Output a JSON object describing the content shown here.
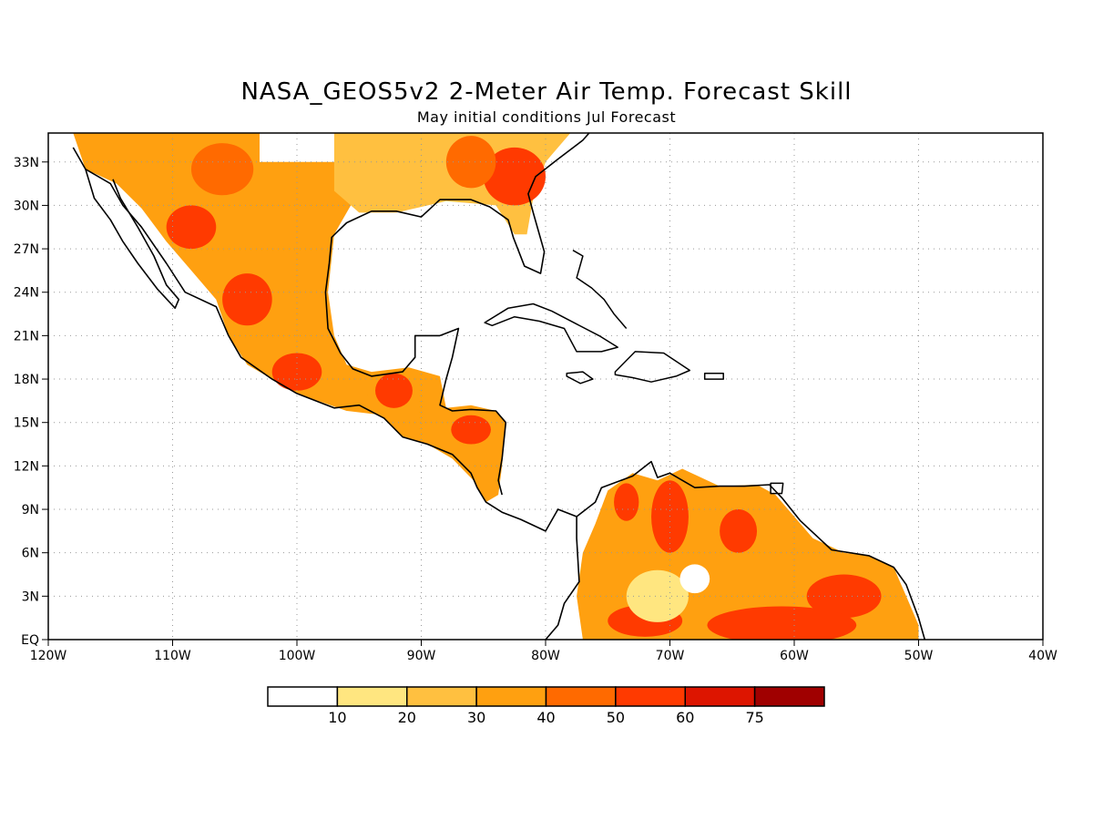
{
  "title": "NASA_GEOS5v2 2-Meter Air Temp. Forecast Skill",
  "subtitle": "May initial conditions  Jul Forecast",
  "map": {
    "lon_range": [
      -120,
      -40
    ],
    "lat_range": [
      0,
      35
    ],
    "lon_ticks": [
      {
        "value": -120,
        "label": "120W"
      },
      {
        "value": -110,
        "label": "110W"
      },
      {
        "value": -100,
        "label": "100W"
      },
      {
        "value": -90,
        "label": "90W"
      },
      {
        "value": -80,
        "label": "80W"
      },
      {
        "value": -70,
        "label": "70W"
      },
      {
        "value": -60,
        "label": "60W"
      },
      {
        "value": -50,
        "label": "50W"
      },
      {
        "value": -40,
        "label": "40W"
      }
    ],
    "lat_ticks": [
      {
        "value": 0,
        "label": "EQ"
      },
      {
        "value": 3,
        "label": "3N"
      },
      {
        "value": 6,
        "label": "6N"
      },
      {
        "value": 9,
        "label": "9N"
      },
      {
        "value": 12,
        "label": "12N"
      },
      {
        "value": 15,
        "label": "15N"
      },
      {
        "value": 18,
        "label": "18N"
      },
      {
        "value": 21,
        "label": "21N"
      },
      {
        "value": 24,
        "label": "24N"
      },
      {
        "value": 27,
        "label": "27N"
      },
      {
        "value": 30,
        "label": "30N"
      },
      {
        "value": 33,
        "label": "33N"
      }
    ],
    "grid": "dotted"
  },
  "colorbar": {
    "colors": [
      "#ffffff",
      "#ffe680",
      "#ffc040",
      "#ffa010",
      "#ff6a00",
      "#ff3a00",
      "#dd1500",
      "#a00000"
    ],
    "labels": [
      "10",
      "20",
      "30",
      "40",
      "50",
      "60",
      "75"
    ]
  },
  "skill_regions": [
    {
      "name": "mexico-us-southwest",
      "level": 3,
      "lonlat": [
        [
          -118,
          35
        ],
        [
          -103,
          35
        ],
        [
          -103,
          33
        ],
        [
          -97,
          33
        ],
        [
          -95,
          31
        ],
        [
          -97,
          28
        ],
        [
          -97.5,
          24
        ],
        [
          -97,
          21
        ],
        [
          -96,
          19
        ],
        [
          -94,
          18.5
        ],
        [
          -92,
          17.5
        ],
        [
          -91,
          16
        ],
        [
          -93,
          15.5
        ],
        [
          -96,
          15.8
        ],
        [
          -100,
          17
        ],
        [
          -104,
          19
        ],
        [
          -105.5,
          21
        ],
        [
          -106.5,
          23.5
        ],
        [
          -108.5,
          25.5
        ],
        [
          -110.5,
          27.5
        ],
        [
          -112.5,
          29.8
        ],
        [
          -114.5,
          31.5
        ],
        [
          -117,
          32.5
        ]
      ]
    },
    {
      "name": "us-southeast",
      "level": 2,
      "lonlat": [
        [
          -97,
          35
        ],
        [
          -78,
          35
        ],
        [
          -80,
          33
        ],
        [
          -81,
          30.5
        ],
        [
          -81.5,
          28
        ],
        [
          -82.5,
          28
        ],
        [
          -84,
          30
        ],
        [
          -88,
          30.3
        ],
        [
          -92,
          29.5
        ],
        [
          -95,
          29.5
        ],
        [
          -97,
          31
        ]
      ]
    },
    {
      "name": "central-america",
      "level": 3,
      "lonlat": [
        [
          -94,
          18.5
        ],
        [
          -91,
          18.8
        ],
        [
          -88.5,
          18.2
        ],
        [
          -88,
          16
        ],
        [
          -86,
          16.2
        ],
        [
          -84,
          15.8
        ],
        [
          -83.2,
          15
        ],
        [
          -83.5,
          12
        ],
        [
          -83.8,
          10
        ],
        [
          -84.8,
          9.5
        ],
        [
          -85.8,
          11
        ],
        [
          -87.5,
          12.5
        ],
        [
          -89.5,
          13.5
        ],
        [
          -91.5,
          14
        ],
        [
          -93,
          15.3
        ],
        [
          -94.5,
          16
        ]
      ]
    },
    {
      "name": "south-america-north",
      "level": 3,
      "lonlat": [
        [
          -77,
          0
        ],
        [
          -77.5,
          3
        ],
        [
          -77,
          6
        ],
        [
          -76,
          8
        ],
        [
          -75,
          10.3
        ],
        [
          -73,
          11.5
        ],
        [
          -71,
          11
        ],
        [
          -69,
          11.8
        ],
        [
          -66,
          10.6
        ],
        [
          -63,
          10.7
        ],
        [
          -61.5,
          10
        ],
        [
          -60,
          8.5
        ],
        [
          -58.5,
          7
        ],
        [
          -56,
          6
        ],
        [
          -54,
          5.8
        ],
        [
          -52,
          5
        ],
        [
          -51,
          3
        ],
        [
          -50,
          1
        ],
        [
          -50,
          0
        ]
      ]
    }
  ],
  "hotspots": [
    {
      "name": "sonora-max",
      "level": 5,
      "lon": -108.5,
      "lat": 28.5,
      "rx": 2,
      "ry": 1.5
    },
    {
      "name": "sierra-madre-max",
      "level": 5,
      "lon": -104,
      "lat": 23.5,
      "rx": 2,
      "ry": 1.8
    },
    {
      "name": "chihuahua-max",
      "level": 4,
      "lon": -106,
      "lat": 32.5,
      "rx": 2.5,
      "ry": 1.8
    },
    {
      "name": "southern-mexico-max",
      "level": 5,
      "lon": -100,
      "lat": 18.5,
      "rx": 2,
      "ry": 1.3
    },
    {
      "name": "georgia-max",
      "level": 5,
      "lon": -82.5,
      "lat": 32,
      "rx": 2.5,
      "ry": 2
    },
    {
      "name": "alabama-max",
      "level": 4,
      "lon": -86,
      "lat": 33,
      "rx": 2,
      "ry": 1.8
    },
    {
      "name": "guatemala-max",
      "level": 5,
      "lon": -92.2,
      "lat": 17.2,
      "rx": 1.5,
      "ry": 1.2
    },
    {
      "name": "honduras-max",
      "level": 5,
      "lon": -86,
      "lat": 14.5,
      "rx": 1.6,
      "ry": 1
    },
    {
      "name": "venezuela-max",
      "level": 5,
      "lon": -70,
      "lat": 8.5,
      "rx": 1.5,
      "ry": 2.5
    },
    {
      "name": "venezuela-east-max",
      "level": 5,
      "lon": -64.5,
      "lat": 7.5,
      "rx": 1.5,
      "ry": 1.5
    },
    {
      "name": "colombia-max",
      "level": 5,
      "lon": -73.5,
      "lat": 9.5,
      "rx": 1,
      "ry": 1.3
    },
    {
      "name": "guiana-max",
      "level": 5,
      "lon": -56,
      "lat": 3,
      "rx": 3,
      "ry": 1.5
    },
    {
      "name": "amazon-south-max",
      "level": 5,
      "lon": -61,
      "lat": 1,
      "rx": 6,
      "ry": 1.3
    },
    {
      "name": "amazon-west-max",
      "level": 5,
      "lon": -72,
      "lat": 1.3,
      "rx": 3,
      "ry": 1.1
    },
    {
      "name": "colombia-low",
      "level": 1,
      "lon": -71,
      "lat": 3,
      "rx": 2.5,
      "ry": 1.8
    },
    {
      "name": "venezuela-low",
      "level": 0,
      "lon": -68,
      "lat": 4.2,
      "rx": 1.2,
      "ry": 1
    }
  ],
  "coastlines": [
    {
      "name": "north-america-gulf-coast",
      "lonlat": [
        [
          -118,
          34
        ],
        [
          -117,
          32.5
        ],
        [
          -115,
          31.5
        ],
        [
          -114,
          30
        ],
        [
          -112.5,
          28.5
        ],
        [
          -110.5,
          26
        ],
        [
          -109,
          24
        ],
        [
          -106.5,
          23
        ],
        [
          -105.5,
          21
        ],
        [
          -104.5,
          19.5
        ],
        [
          -102,
          18
        ],
        [
          -100,
          17
        ],
        [
          -97,
          16
        ],
        [
          -95,
          16.2
        ],
        [
          -93,
          15.3
        ],
        [
          -91.5,
          14
        ],
        [
          -89.5,
          13.5
        ],
        [
          -87.5,
          12.8
        ],
        [
          -86,
          11.5
        ],
        [
          -85.5,
          10.5
        ],
        [
          -84.8,
          9.5
        ],
        [
          -83.5,
          8.8
        ],
        [
          -82,
          8.3
        ],
        [
          -80,
          7.5
        ],
        [
          -79,
          9
        ],
        [
          -77.5,
          8.5
        ],
        [
          -76,
          9.5
        ],
        [
          -75.5,
          10.5
        ],
        [
          -73,
          11.3
        ],
        [
          -71.5,
          12.3
        ],
        [
          -71,
          11.2
        ],
        [
          -70,
          11.5
        ],
        [
          -68,
          10.5
        ],
        [
          -66,
          10.6
        ],
        [
          -64,
          10.6
        ],
        [
          -62,
          10.7
        ],
        [
          -61,
          9.8
        ],
        [
          -59.5,
          8.2
        ],
        [
          -57,
          6.2
        ],
        [
          -54,
          5.8
        ],
        [
          -52,
          5
        ],
        [
          -51,
          3.8
        ],
        [
          -50,
          1.5
        ],
        [
          -49.5,
          0
        ]
      ]
    },
    {
      "name": "gulf-north-coast",
      "lonlat": [
        [
          -88.5,
          21
        ],
        [
          -90.5,
          21
        ],
        [
          -90.5,
          19.5
        ],
        [
          -91.5,
          18.5
        ],
        [
          -94,
          18.2
        ],
        [
          -95.5,
          18.7
        ],
        [
          -96.5,
          19.8
        ],
        [
          -97.5,
          21.5
        ],
        [
          -97.7,
          24
        ],
        [
          -97.4,
          26
        ],
        [
          -97.2,
          27.8
        ],
        [
          -96,
          28.8
        ],
        [
          -94,
          29.6
        ],
        [
          -92,
          29.6
        ],
        [
          -90,
          29.2
        ],
        [
          -88.5,
          30.4
        ],
        [
          -86,
          30.4
        ],
        [
          -84.5,
          29.9
        ],
        [
          -83,
          29
        ],
        [
          -82.6,
          27.8
        ],
        [
          -81.7,
          25.8
        ],
        [
          -80.4,
          25.3
        ],
        [
          -80.1,
          26.8
        ],
        [
          -81,
          29.5
        ],
        [
          -81.4,
          30.8
        ],
        [
          -80.8,
          32
        ],
        [
          -79,
          33.2
        ],
        [
          -77,
          34.5
        ],
        [
          -76.5,
          35
        ]
      ]
    },
    {
      "name": "yucatan-east",
      "lonlat": [
        [
          -88.5,
          21
        ],
        [
          -87,
          21.5
        ],
        [
          -87.5,
          19.5
        ],
        [
          -88,
          18
        ],
        [
          -88.5,
          16.2
        ],
        [
          -87.5,
          15.8
        ],
        [
          -86,
          15.9
        ],
        [
          -84,
          15.8
        ],
        [
          -83.2,
          15
        ],
        [
          -83.5,
          12.5
        ],
        [
          -83.8,
          11
        ],
        [
          -83.5,
          10
        ]
      ]
    },
    {
      "name": "baja-california",
      "lonlat": [
        [
          -117,
          32.5
        ],
        [
          -116.3,
          30.5
        ],
        [
          -115,
          29
        ],
        [
          -114,
          27.5
        ],
        [
          -112.8,
          26
        ],
        [
          -111.2,
          24.2
        ],
        [
          -109.8,
          22.9
        ],
        [
          -109.5,
          23.5
        ],
        [
          -110.5,
          24.5
        ],
        [
          -111.5,
          26.5
        ],
        [
          -112.8,
          28.5
        ],
        [
          -114.2,
          30.5
        ],
        [
          -114.8,
          31.8
        ]
      ]
    },
    {
      "name": "south-america-pacific",
      "lonlat": [
        [
          -77.5,
          8.5
        ],
        [
          -77.5,
          7
        ],
        [
          -77.3,
          4
        ],
        [
          -78.5,
          2.5
        ],
        [
          -79,
          1
        ],
        [
          -80,
          0
        ]
      ]
    }
  ],
  "islands": [
    {
      "name": "cuba",
      "lonlat": [
        [
          -84.9,
          21.9
        ],
        [
          -83,
          22.9
        ],
        [
          -81,
          23.2
        ],
        [
          -79.5,
          22.7
        ],
        [
          -77.5,
          21.8
        ],
        [
          -75.7,
          21
        ],
        [
          -74.2,
          20.2
        ],
        [
          -75.5,
          19.9
        ],
        [
          -77.5,
          19.9
        ],
        [
          -78.5,
          21.5
        ],
        [
          -80.5,
          22
        ],
        [
          -82.5,
          22.3
        ],
        [
          -84.3,
          21.7
        ]
      ]
    },
    {
      "name": "hispaniola",
      "lonlat": [
        [
          -74.4,
          18.5
        ],
        [
          -72.8,
          19.9
        ],
        [
          -70.5,
          19.8
        ],
        [
          -68.4,
          18.6
        ],
        [
          -69.5,
          18.2
        ],
        [
          -71.5,
          17.8
        ],
        [
          -73,
          18.1
        ],
        [
          -74.4,
          18.3
        ]
      ]
    },
    {
      "name": "jamaica",
      "lonlat": [
        [
          -78.3,
          18.4
        ],
        [
          -77,
          18.5
        ],
        [
          -76.2,
          18
        ],
        [
          -77.2,
          17.7
        ],
        [
          -78.3,
          18.2
        ]
      ]
    },
    {
      "name": "puerto-rico",
      "lonlat": [
        [
          -67.2,
          18.4
        ],
        [
          -65.7,
          18.4
        ],
        [
          -65.7,
          18
        ],
        [
          -67.2,
          18
        ]
      ]
    },
    {
      "name": "trinidad",
      "lonlat": [
        [
          -61.9,
          10.8
        ],
        [
          -60.9,
          10.8
        ],
        [
          -61,
          10.1
        ],
        [
          -61.9,
          10.1
        ]
      ]
    },
    {
      "name": "bahamas",
      "lonlat": [
        [
          -77.8,
          26.9
        ],
        [
          -77,
          26.5
        ],
        [
          -77.5,
          25
        ],
        [
          -76.3,
          24.3
        ],
        [
          -75.3,
          23.5
        ],
        [
          -74.5,
          22.5
        ],
        [
          -73.5,
          21.5
        ]
      ]
    }
  ]
}
